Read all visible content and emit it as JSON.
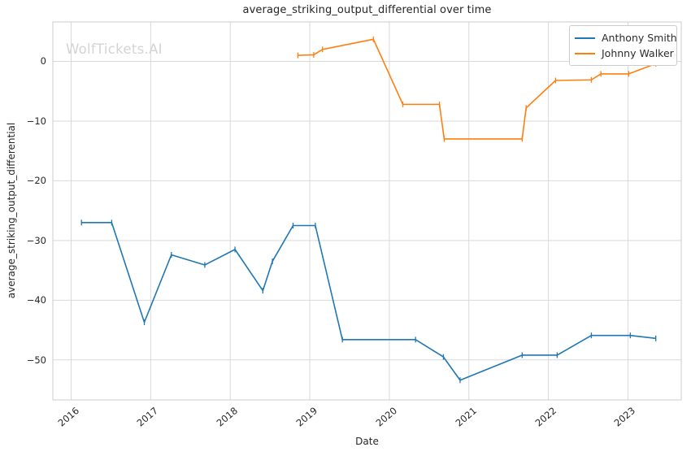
{
  "watermark": "WolfTickets.AI",
  "chart_data": {
    "type": "line",
    "title": "average_striking_output_differential over time",
    "xlabel": "Date",
    "ylabel": "average_striking_output_differential",
    "xlim": [
      2015.77,
      2023.67
    ],
    "ylim": [
      -56.7,
      6.6
    ],
    "grid": true,
    "legend_position": "upper right",
    "x_ticks": [
      {
        "value": 2016,
        "label": "2016"
      },
      {
        "value": 2017,
        "label": "2017"
      },
      {
        "value": 2018,
        "label": "2018"
      },
      {
        "value": 2019,
        "label": "2019"
      },
      {
        "value": 2020,
        "label": "2020"
      },
      {
        "value": 2021,
        "label": "2021"
      },
      {
        "value": 2022,
        "label": "2022"
      },
      {
        "value": 2023,
        "label": "2023"
      }
    ],
    "y_ticks": [
      {
        "value": 0,
        "label": "0"
      },
      {
        "value": -10,
        "label": "−10"
      },
      {
        "value": -20,
        "label": "−20"
      },
      {
        "value": -30,
        "label": "−30"
      },
      {
        "value": -40,
        "label": "−40"
      },
      {
        "value": -50,
        "label": "−50"
      }
    ],
    "series": [
      {
        "name": "Anthony Smith",
        "color": "#1f77b4",
        "marker": "|",
        "points": [
          [
            2016.13,
            -27.0
          ],
          [
            2016.51,
            -27.0
          ],
          [
            2016.92,
            -43.7
          ],
          [
            2017.26,
            -32.4
          ],
          [
            2017.68,
            -34.1
          ],
          [
            2018.06,
            -31.5
          ],
          [
            2018.41,
            -38.4
          ],
          [
            2018.53,
            -33.5
          ],
          [
            2018.79,
            -27.5
          ],
          [
            2019.07,
            -27.5
          ],
          [
            2019.41,
            -46.6
          ],
          [
            2020.33,
            -46.6
          ],
          [
            2020.68,
            -49.5
          ],
          [
            2020.89,
            -53.4
          ],
          [
            2021.67,
            -49.2
          ],
          [
            2022.11,
            -49.2
          ],
          [
            2022.54,
            -45.9
          ],
          [
            2023.03,
            -45.9
          ],
          [
            2023.35,
            -46.4
          ]
        ]
      },
      {
        "name": "Johnny Walker",
        "color": "#ff7f0e",
        "marker": "|",
        "points": [
          [
            2018.85,
            1.0
          ],
          [
            2019.05,
            1.1
          ],
          [
            2019.16,
            2.0
          ],
          [
            2019.8,
            3.7
          ],
          [
            2020.17,
            -7.2
          ],
          [
            2020.63,
            -7.2
          ],
          [
            2020.69,
            -13.0
          ],
          [
            2021.67,
            -13.0
          ],
          [
            2021.72,
            -7.8
          ],
          [
            2022.09,
            -3.2
          ],
          [
            2022.54,
            -3.1
          ],
          [
            2022.66,
            -2.1
          ],
          [
            2023.01,
            -2.1
          ],
          [
            2023.35,
            -0.4
          ]
        ]
      }
    ],
    "style": {
      "grid_color": "#d9d9d9",
      "spine_color": "#cccccc",
      "text_color": "#262626",
      "background": "#ffffff"
    }
  }
}
